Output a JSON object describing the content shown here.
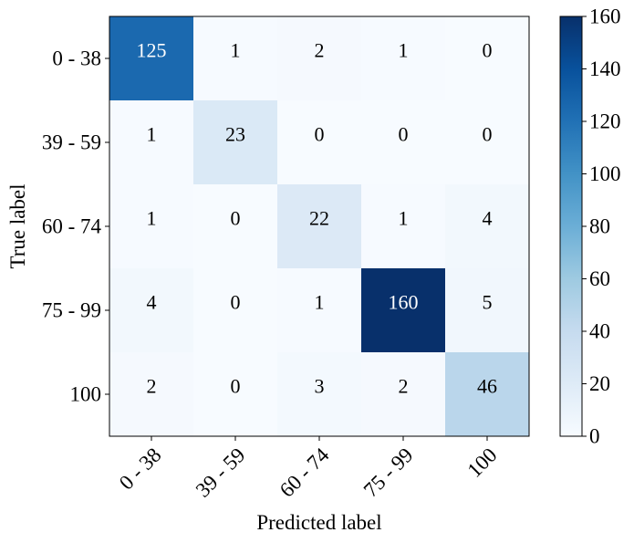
{
  "chart_data": {
    "type": "heatmap",
    "title": "",
    "xlabel": "Predicted label",
    "ylabel": "True label",
    "x_categories": [
      "0 - 38",
      "39 - 59",
      "60 - 74",
      "75 - 99",
      "100"
    ],
    "y_categories": [
      "0 - 38",
      "39 - 59",
      "60 - 74",
      "75 - 99",
      "100"
    ],
    "matrix": [
      [
        125,
        1,
        2,
        1,
        0
      ],
      [
        1,
        23,
        0,
        0,
        0
      ],
      [
        1,
        0,
        22,
        1,
        4
      ],
      [
        4,
        0,
        1,
        160,
        5
      ],
      [
        2,
        0,
        3,
        2,
        46
      ]
    ],
    "colormap": "Blues",
    "vmin": 0,
    "vmax": 160,
    "colorbar_ticks": [
      0,
      20,
      40,
      60,
      80,
      100,
      120,
      140,
      160
    ],
    "colors": {
      "low": "#f7fbff",
      "high": "#08306b",
      "text_dark": "#000000",
      "text_light": "#ffffff"
    }
  }
}
